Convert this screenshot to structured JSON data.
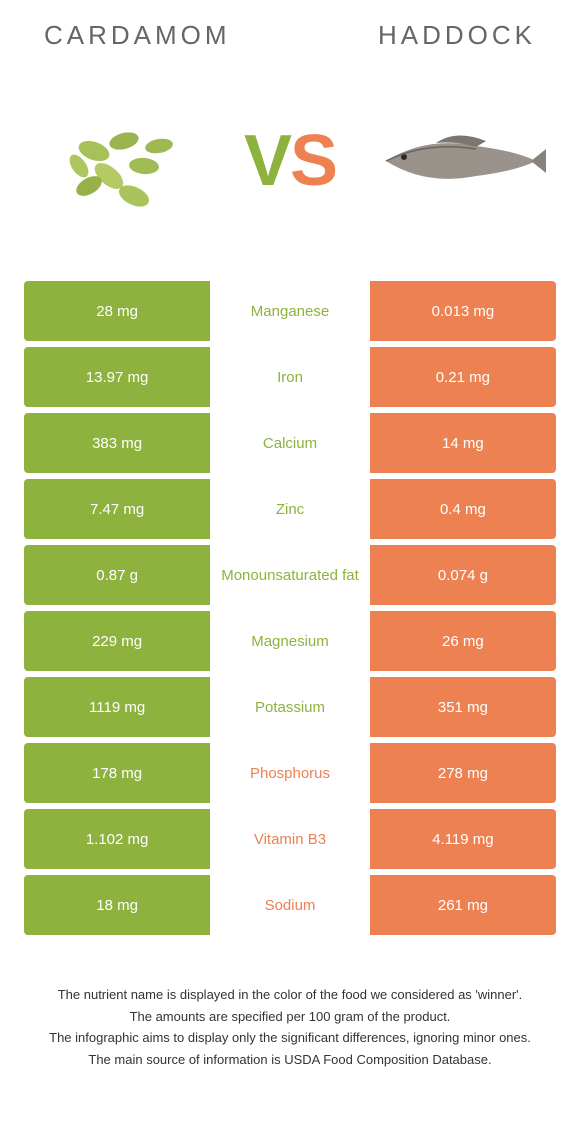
{
  "colors": {
    "left_bg": "#8db33e",
    "right_bg": "#ed8151",
    "left_text": "#8db33e",
    "right_text": "#ed8151"
  },
  "header": {
    "left_title": "Cardamom",
    "right_title": "Haddock"
  },
  "vs": {
    "v": "V",
    "s": "S"
  },
  "rows": [
    {
      "left": "28 mg",
      "mid": "Manganese",
      "right": "0.013 mg",
      "winner": "left"
    },
    {
      "left": "13.97 mg",
      "mid": "Iron",
      "right": "0.21 mg",
      "winner": "left"
    },
    {
      "left": "383 mg",
      "mid": "Calcium",
      "right": "14 mg",
      "winner": "left"
    },
    {
      "left": "7.47 mg",
      "mid": "Zinc",
      "right": "0.4 mg",
      "winner": "left"
    },
    {
      "left": "0.87 g",
      "mid": "Monounsaturated fat",
      "right": "0.074 g",
      "winner": "left"
    },
    {
      "left": "229 mg",
      "mid": "Magnesium",
      "right": "26 mg",
      "winner": "left"
    },
    {
      "left": "1119 mg",
      "mid": "Potassium",
      "right": "351 mg",
      "winner": "left"
    },
    {
      "left": "178 mg",
      "mid": "Phosphorus",
      "right": "278 mg",
      "winner": "right"
    },
    {
      "left": "1.102 mg",
      "mid": "Vitamin B3",
      "right": "4.119 mg",
      "winner": "right"
    },
    {
      "left": "18 mg",
      "mid": "Sodium",
      "right": "261 mg",
      "winner": "right"
    }
  ],
  "footer": {
    "l1": "The nutrient name is displayed in the color of the food we considered as 'winner'.",
    "l2": "The amounts are specified per 100 gram of the product.",
    "l3": "The infographic aims to display only the significant differences, ignoring minor ones.",
    "l4": "The main source of information is USDA Food Composition Database."
  }
}
